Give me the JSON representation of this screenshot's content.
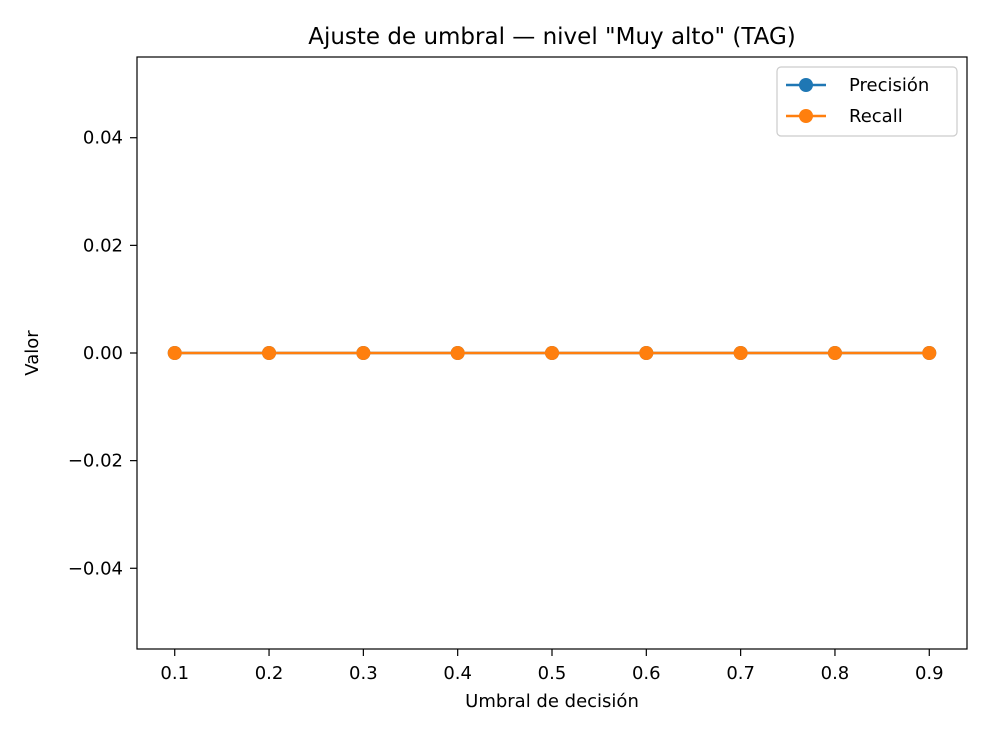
{
  "chart_data": {
    "type": "line",
    "title": "Ajuste de umbral — nivel \"Muy alto\" (TAG)",
    "xlabel": "Umbral de decisión",
    "ylabel": "Valor",
    "x": [
      0.1,
      0.2,
      0.3,
      0.4,
      0.5,
      0.6,
      0.7,
      0.8,
      0.9
    ],
    "xticks": [
      "0.1",
      "0.2",
      "0.3",
      "0.4",
      "0.5",
      "0.6",
      "0.7",
      "0.8",
      "0.9"
    ],
    "yticks": [
      "−0.04",
      "−0.02",
      "0.00",
      "0.02",
      "0.04"
    ],
    "ytick_values": [
      -0.04,
      -0.02,
      0.0,
      0.02,
      0.04
    ],
    "xlim": [
      0.06,
      0.94
    ],
    "ylim": [
      -0.055,
      0.055
    ],
    "grid": false,
    "legend_position": "top-right",
    "series": [
      {
        "name": "Precisión",
        "color": "#1f77b4",
        "marker": "circle",
        "values": [
          0,
          0,
          0,
          0,
          0,
          0,
          0,
          0,
          0
        ]
      },
      {
        "name": "Recall",
        "color": "#ff7f0e",
        "marker": "circle",
        "values": [
          0,
          0,
          0,
          0,
          0,
          0,
          0,
          0,
          0
        ]
      }
    ]
  }
}
